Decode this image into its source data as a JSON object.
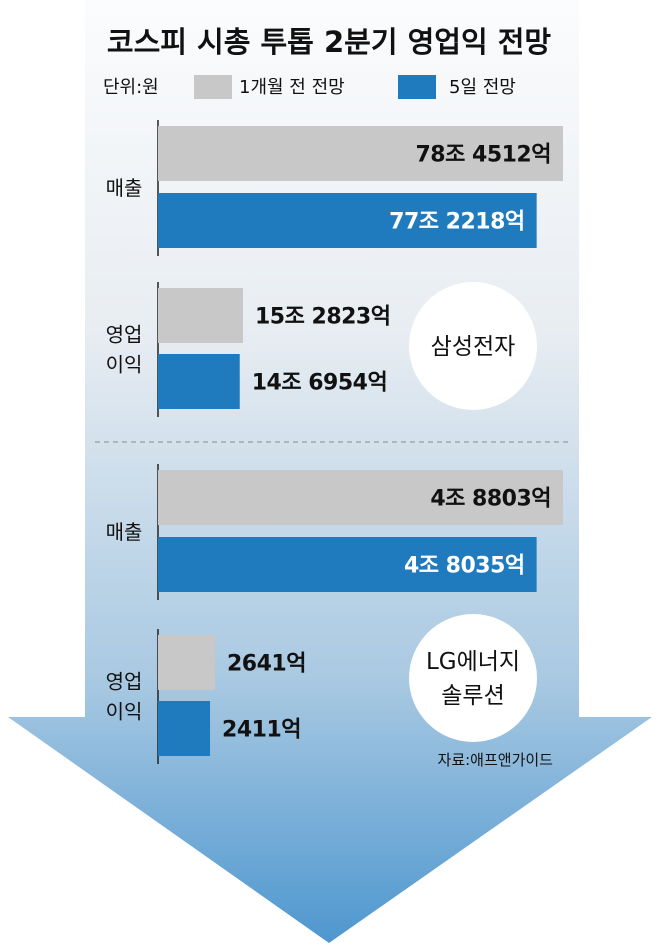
{
  "chart_data": {
    "type": "bar",
    "orientation": "horizontal",
    "title": "코스피 시총 투톱 2분기 영업익 전망",
    "unit_label": "단위:원",
    "source": "자료:애프앤가이드",
    "series": [
      {
        "name": "1개월 전 전망",
        "color": "#c8c8c8"
      },
      {
        "name": "5일 전망",
        "color": "#1f7bbd"
      }
    ],
    "companies": [
      {
        "name_lines": [
          "삼성전자"
        ],
        "groups": [
          {
            "label_lines": [
              "매출"
            ],
            "values_won": [
              78451200000000,
              77221800000000
            ],
            "value_labels": [
              "78조 4512억",
              "77조 2218억"
            ]
          },
          {
            "label_lines": [
              "영업",
              "이익"
            ],
            "values_won": [
              15282300000000,
              14695400000000
            ],
            "value_labels": [
              "15조 2823억",
              "14조 6954억"
            ]
          }
        ]
      },
      {
        "name_lines": [
          "LG에너지",
          "솔루션"
        ],
        "groups": [
          {
            "label_lines": [
              "매출"
            ],
            "values_won": [
              4880300000000,
              4803500000000
            ],
            "value_labels": [
              "4조 8803억",
              "4조 8035억"
            ]
          },
          {
            "label_lines": [
              "영업",
              "이익"
            ],
            "values_won": [
              264100000000,
              241100000000
            ],
            "value_labels": [
              "2641억",
              "2411억"
            ]
          }
        ]
      }
    ]
  }
}
